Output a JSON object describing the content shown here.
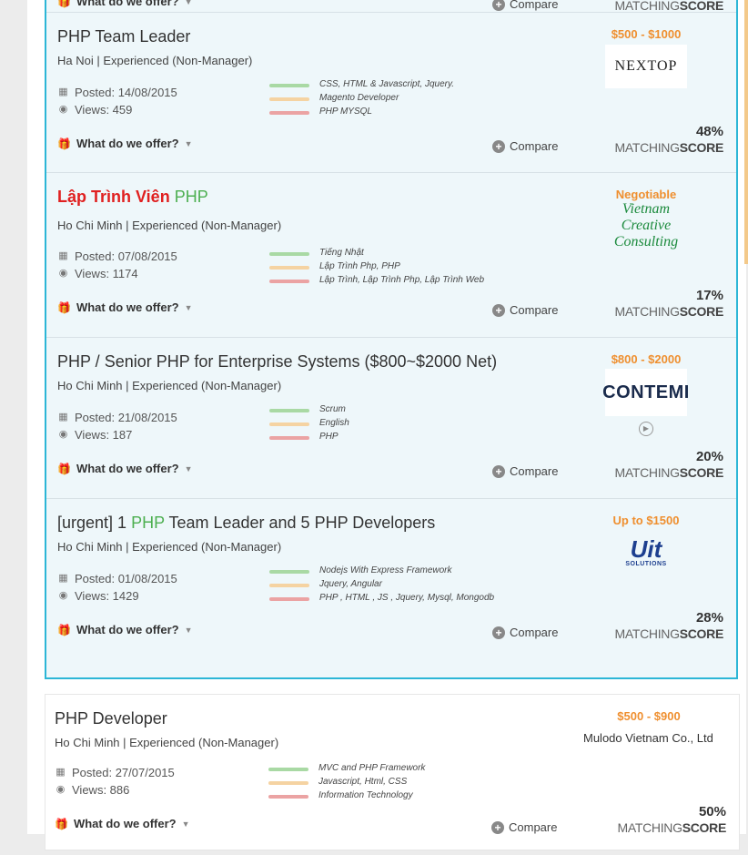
{
  "labels": {
    "offer": "What do we offer?",
    "compare": "Compare",
    "matching_a": "MATCHING",
    "matching_b": "SCORE"
  },
  "jobs": [
    {
      "title": "PHP Team Leader",
      "location": "Ha Noi | Experienced (Non-Manager)",
      "posted": "Posted: 14/08/2015",
      "views": "Views: 459",
      "skills": [
        "CSS, HTML & Javascript, Jquery.",
        "Magento Developer",
        "PHP MYSQL"
      ],
      "salary": "$500 - $1000",
      "company_logo_text": "NEXTOP",
      "score": "48%"
    },
    {
      "title_a": "Lập Trình Viên",
      "title_b": "PHP",
      "location": "Ho Chi Minh | Experienced (Non-Manager)",
      "posted": "Posted: 07/08/2015",
      "views": "Views: 1174",
      "skills": [
        "Tiếng Nhật",
        "Lập Trình Php, PHP",
        "Lập Trình, Lập Trình Php, Lập Trình Web"
      ],
      "salary": "Negotiable",
      "logo_lines": [
        "Vietnam",
        "Creative",
        "Consulting"
      ],
      "score": "17%"
    },
    {
      "title": "PHP / Senior PHP for Enterprise Systems ($800~$2000 Net)",
      "location": "Ho Chi Minh | Experienced (Non-Manager)",
      "posted": "Posted: 21/08/2015",
      "views": "Views: 187",
      "skills": [
        "Scrum",
        "English",
        "PHP"
      ],
      "salary": "$800 - $2000",
      "company_logo_text": "CONTEMI",
      "score": "20%"
    },
    {
      "title_a": "[urgent] 1",
      "title_b": "PHP",
      "title_c": "Team Leader and 5 PHP Developers",
      "location": "Ho Chi Minh | Experienced (Non-Manager)",
      "posted": "Posted: 01/08/2015",
      "views": "Views: 1429",
      "skills": [
        "Nodejs With Express Framework",
        "Jquery, Angular",
        "PHP , HTML , JS , Jquery, Mysql, Mongodb"
      ],
      "salary": "Up to $1500",
      "logo_a": "Uit",
      "logo_b": "SOLUTIONS",
      "score": "28%"
    },
    {
      "title": "PHP Developer",
      "location": "Ho Chi Minh | Experienced (Non-Manager)",
      "posted": "Posted: 27/07/2015",
      "views": "Views: 886",
      "skills": [
        "MVC and PHP Framework",
        "Javascript, Html, CSS",
        "Information Technology"
      ],
      "salary": "$500 - $900",
      "company": "Mulodo Vietnam Co., Ltd",
      "score": "50%"
    }
  ]
}
